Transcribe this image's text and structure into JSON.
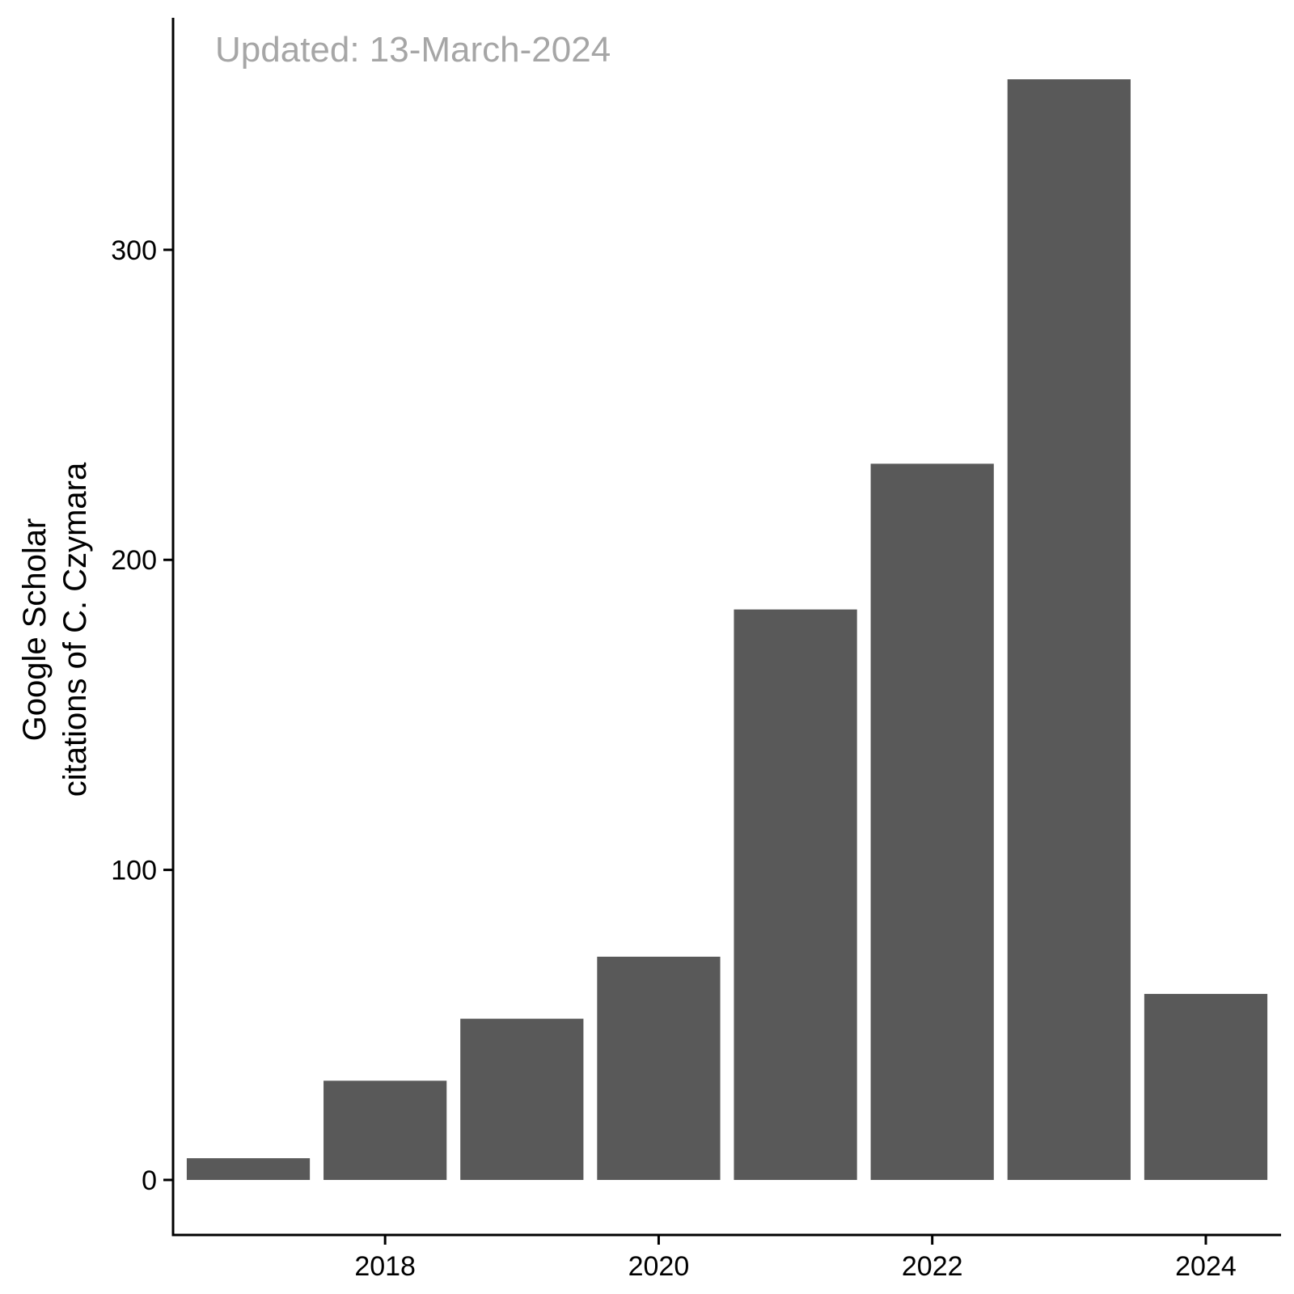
{
  "chart_data": {
    "type": "bar",
    "x": [
      2017,
      2018,
      2019,
      2020,
      2021,
      2022,
      2023,
      2024
    ],
    "values": [
      7,
      32,
      52,
      72,
      184,
      231,
      355,
      60
    ],
    "xlabel": "",
    "ylabel_lines": [
      "Google Scholar",
      "citations of C. Czymara"
    ],
    "xticks": [
      2018,
      2020,
      2022,
      2024
    ],
    "xtick_labels": [
      "2018",
      "2020",
      "2022",
      "2024"
    ],
    "yticks": [
      0,
      100,
      200,
      300
    ],
    "ytick_labels": [
      "0",
      "100",
      "200",
      "300"
    ],
    "xlim": [
      2016.45,
      2024.55
    ],
    "ylim": [
      -17.75,
      372.75
    ],
    "bar_width": 0.9,
    "bar_color": "#595959",
    "grid": false,
    "annotation": {
      "text": "Updated: 13-March-2024",
      "color": "#a6a6a6",
      "placement": "top-left"
    }
  }
}
